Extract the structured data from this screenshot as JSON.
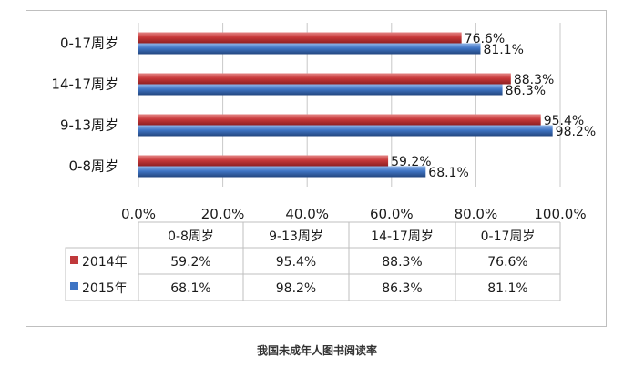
{
  "caption": "我国未成年人图书阅读率",
  "colors": {
    "s2014": "#c0393b",
    "s2015": "#3e74c4",
    "grid": "#c8c8c8",
    "border": "#bfbfbf"
  },
  "chart_data": {
    "type": "bar",
    "orientation": "horizontal",
    "categories": [
      "0-8周岁",
      "9-13周岁",
      "14-17周岁",
      "0-17周岁"
    ],
    "series": [
      {
        "name": "2014年",
        "values": [
          59.2,
          95.4,
          88.3,
          76.6
        ],
        "labels": [
          "59.2%",
          "95.4%",
          "88.3%",
          "76.6%"
        ]
      },
      {
        "name": "2015年",
        "values": [
          68.1,
          98.2,
          86.3,
          81.1
        ],
        "labels": [
          "68.1%",
          "98.2%",
          "86.3%",
          "81.1%"
        ]
      }
    ],
    "xlim": [
      0,
      100
    ],
    "ticks": [
      0,
      20,
      40,
      60,
      80,
      100
    ],
    "tick_labels": [
      "0.0%",
      "20.0%",
      "40.0%",
      "60.0%",
      "80.0%",
      "100.0%"
    ],
    "grid": true,
    "legend": "data-table-below"
  }
}
